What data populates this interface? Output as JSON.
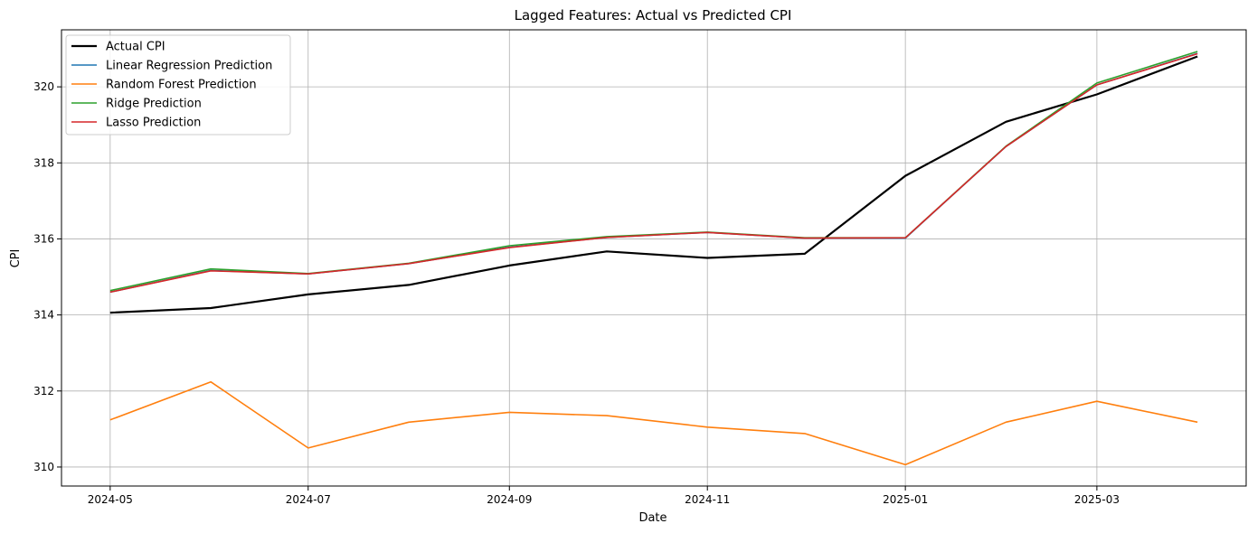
{
  "chart_data": {
    "type": "line",
    "title": "Lagged Features: Actual vs Predicted CPI",
    "xlabel": "Date",
    "ylabel": "CPI",
    "x": [
      "2024-05-01",
      "2024-06-01",
      "2024-07-01",
      "2024-08-01",
      "2024-09-01",
      "2024-10-01",
      "2024-11-01",
      "2024-12-01",
      "2025-01-01",
      "2025-02-01",
      "2025-03-01",
      "2025-04-01"
    ],
    "xlim": [
      "2024-04-16",
      "2025-04-16"
    ],
    "ylim": [
      309.5,
      321.5
    ],
    "x_ticks": [
      "2024-05",
      "2024-07",
      "2024-09",
      "2024-11",
      "2025-01",
      "2025-03"
    ],
    "y_ticks": [
      310,
      312,
      314,
      316,
      318,
      320
    ],
    "grid": true,
    "legend_position": "top-left",
    "series": [
      {
        "name": "Actual CPI",
        "color": "#000000",
        "width": 2.2,
        "values": [
          314.06,
          314.18,
          314.54,
          314.79,
          315.3,
          315.67,
          315.5,
          315.61,
          317.66,
          319.08,
          319.8,
          320.8
        ]
      },
      {
        "name": "Linear Regression Prediction",
        "color": "#1f77b4",
        "width": 1.6,
        "values": [
          314.6,
          315.17,
          315.08,
          315.35,
          315.78,
          316.04,
          316.17,
          316.02,
          316.02,
          318.43,
          320.05,
          320.88
        ]
      },
      {
        "name": "Random Forest Prediction",
        "color": "#ff7f0e",
        "width": 1.6,
        "values": [
          311.24,
          312.24,
          310.5,
          311.18,
          311.44,
          311.35,
          311.05,
          310.88,
          310.06,
          311.18,
          311.73,
          311.18
        ]
      },
      {
        "name": "Ridge Prediction",
        "color": "#2ca02c",
        "width": 1.6,
        "values": [
          314.64,
          315.21,
          315.09,
          315.36,
          315.82,
          316.06,
          316.18,
          316.03,
          316.03,
          318.44,
          320.1,
          320.93
        ]
      },
      {
        "name": "Lasso Prediction",
        "color": "#d62728",
        "width": 1.6,
        "values": [
          314.6,
          315.16,
          315.08,
          315.35,
          315.77,
          316.04,
          316.17,
          316.02,
          316.03,
          318.43,
          320.05,
          320.87
        ]
      }
    ]
  }
}
